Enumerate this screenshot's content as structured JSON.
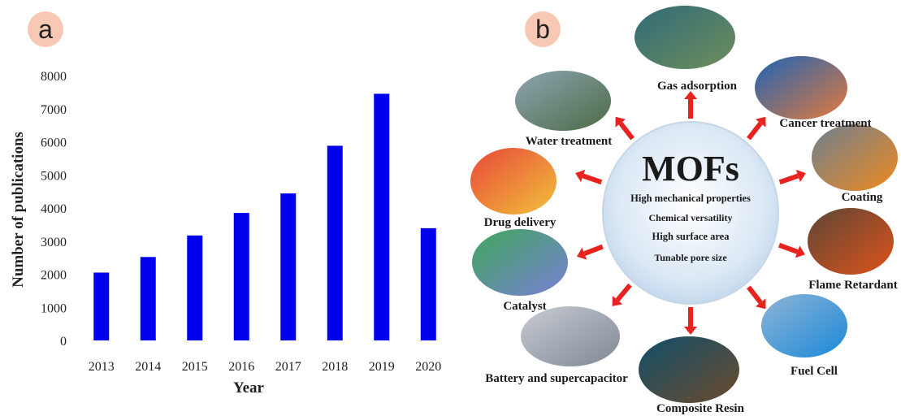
{
  "panels": {
    "a": "a",
    "b": "b"
  },
  "chart_data": {
    "type": "bar",
    "categories": [
      "2013",
      "2014",
      "2015",
      "2016",
      "2017",
      "2018",
      "2019",
      "2020"
    ],
    "values": [
      2050,
      2520,
      3170,
      3850,
      4440,
      5880,
      7450,
      3390
    ],
    "xlabel": "Year",
    "ylabel": "Number of publications",
    "ylim": [
      0,
      8000
    ],
    "yticks": [
      0,
      1000,
      2000,
      3000,
      4000,
      5000,
      6000,
      7000,
      8000
    ],
    "grid": false,
    "bar_color": "#0000ee"
  },
  "diagram": {
    "center_title": "MOFs",
    "center_properties": [
      "High mechanical properties",
      "Chemical versatility",
      "High surface area",
      "Tunable pore size"
    ],
    "applications": [
      "Gas adsorption",
      "Cancer treatment",
      "Coating",
      "Flame Retardant",
      "Fuel Cell",
      "Composite Resin",
      "Battery and supercapacitor",
      "Catalyst",
      "Drug delivery",
      "Water treatment"
    ],
    "arrow_color": "#e8231f",
    "circle_color": "#d6e6f4"
  }
}
